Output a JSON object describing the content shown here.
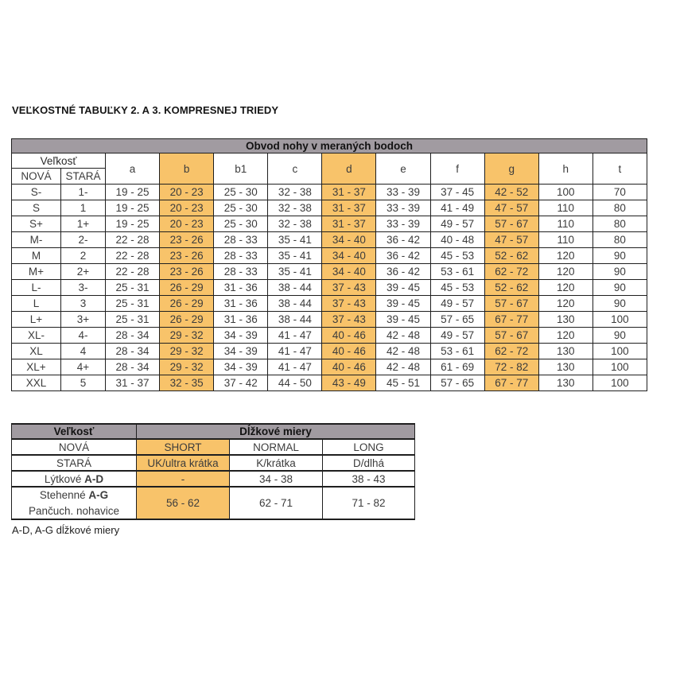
{
  "page": {
    "title": "VEĽKOSTNÉ TABUĽKY 2. A 3. KOMPRESNEJ TRIEDY",
    "footnote": "A-D, A-G dĺžkové miery"
  },
  "colors": {
    "header_gray": "#A19BA1",
    "orange": "#F8C36A",
    "red": "#D2232A",
    "gray_text": "#9DA0A4",
    "text_dark": "#3C3C3C",
    "border": "#1F1F1F"
  },
  "size_table": {
    "title": "Obvod nohy v meraných bodoch",
    "size_header": "Veľkosť",
    "new_label": "NOVÁ",
    "old_label": "STARÁ",
    "columns": [
      "a",
      "b",
      "b1",
      "c",
      "d",
      "e",
      "f",
      "g",
      "h",
      "t"
    ],
    "highlight_indices": [
      1,
      4,
      7
    ],
    "rows": [
      {
        "new": "S-",
        "old": "1-",
        "values": [
          "19 - 25",
          "20 - 23",
          "25 - 30",
          "32 - 38",
          "31 - 37",
          "33 - 39",
          "37 - 45",
          "42 - 52",
          "100",
          "70"
        ]
      },
      {
        "new": "S",
        "old": "1",
        "values": [
          "19 - 25",
          "20 - 23",
          "25 - 30",
          "32 - 38",
          "31 - 37",
          "33 - 39",
          "41 - 49",
          "47 - 57",
          "110",
          "80"
        ]
      },
      {
        "new": "S+",
        "old": "1+",
        "values": [
          "19 - 25",
          "20 - 23",
          "25 - 30",
          "32 - 38",
          "31 - 37",
          "33 - 39",
          "49 - 57",
          "57 - 67",
          "110",
          "80"
        ]
      },
      {
        "new": "M-",
        "old": "2-",
        "values": [
          "22 - 28",
          "23 - 26",
          "28 - 33",
          "35 - 41",
          "34 - 40",
          "36 - 42",
          "40 - 48",
          "47 - 57",
          "110",
          "80"
        ]
      },
      {
        "new": "M",
        "old": "2",
        "values": [
          "22 - 28",
          "23 - 26",
          "28 - 33",
          "35 - 41",
          "34 - 40",
          "36 - 42",
          "45 - 53",
          "52 - 62",
          "120",
          "90"
        ]
      },
      {
        "new": "M+",
        "old": "2+",
        "values": [
          "22 - 28",
          "23 - 26",
          "28 - 33",
          "35 - 41",
          "34 - 40",
          "36 - 42",
          "53 - 61",
          "62 - 72",
          "120",
          "90"
        ]
      },
      {
        "new": "L-",
        "old": "3-",
        "values": [
          "25 - 31",
          "26 - 29",
          "31 - 36",
          "38 - 44",
          "37 - 43",
          "39 - 45",
          "45 - 53",
          "52 - 62",
          "120",
          "90"
        ]
      },
      {
        "new": "L",
        "old": "3",
        "values": [
          "25 - 31",
          "26 - 29",
          "31 - 36",
          "38 - 44",
          "37 - 43",
          "39 - 45",
          "49 - 57",
          "57 - 67",
          "120",
          "90"
        ]
      },
      {
        "new": "L+",
        "old": "3+",
        "values": [
          "25 - 31",
          "26 - 29",
          "31 - 36",
          "38 - 44",
          "37 - 43",
          "39 - 45",
          "57 - 65",
          "67 - 77",
          "130",
          "100"
        ]
      },
      {
        "new": "XL-",
        "old": "4-",
        "values": [
          "28 - 34",
          "29 - 32",
          "34 - 39",
          "41 - 47",
          "40 - 46",
          "42 - 48",
          "49 - 57",
          "57 - 67",
          "120",
          "90"
        ]
      },
      {
        "new": "XL",
        "old": "4",
        "values": [
          "28 - 34",
          "29 - 32",
          "34 - 39",
          "41 - 47",
          "40 - 46",
          "42 - 48",
          "53 - 61",
          "62 - 72",
          "130",
          "100"
        ]
      },
      {
        "new": "XL+",
        "old": "4+",
        "values": [
          "28 - 34",
          "29 - 32",
          "34 - 39",
          "41 - 47",
          "40 - 46",
          "42 - 48",
          "61 - 69",
          "72 - 82",
          "130",
          "100"
        ]
      },
      {
        "new": "XXL",
        "old": "5",
        "values": [
          "31 - 37",
          "32 - 35",
          "37 - 42",
          "44 - 50",
          "43 - 49",
          "45 - 51",
          "57 - 65",
          "67 - 77",
          "130",
          "100"
        ]
      }
    ]
  },
  "length_table": {
    "size_header": "Veľkosť",
    "title": "Dĺžkové miery",
    "new_row": {
      "label": "NOVÁ",
      "values": [
        "SHORT",
        "NORMAL",
        "LONG"
      ]
    },
    "old_row": {
      "label": "STARÁ",
      "values": [
        "UK/ultra krátka",
        "K/krátka",
        "D/dlhá"
      ]
    },
    "calf_row": {
      "label": "Lýtkové",
      "label_bold": "A-D",
      "values": [
        "-",
        "34 - 38",
        "38 - 43"
      ]
    },
    "thigh_row": {
      "label_line1": "Stehenné",
      "label_line1_bold": "A-G",
      "label_line2": "Pančuch. nohavice",
      "values": [
        "56 - 62",
        "62 - 71",
        "71 - 82"
      ]
    }
  }
}
